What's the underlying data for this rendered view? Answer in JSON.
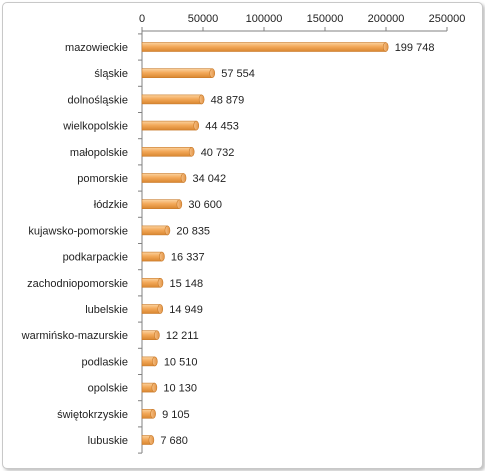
{
  "chart_data": {
    "type": "bar",
    "orientation": "horizontal",
    "title": "",
    "xlabel": "",
    "ylabel": "",
    "xlim": [
      0,
      250000
    ],
    "x_ticks": [
      0,
      50000,
      100000,
      150000,
      200000,
      250000
    ],
    "x_tick_labels": [
      "0",
      "50000",
      "100000",
      "150000",
      "200000",
      "250000"
    ],
    "x_axis_position": "top",
    "grid": false,
    "legend": "none",
    "bar_color": "#f0a550",
    "bar_edge_color": "#c87a2a",
    "categories": [
      "mazowieckie",
      "śląskie",
      "dolnośląskie",
      "wielkopolskie",
      "małopolskie",
      "pomorskie",
      "łódzkie",
      "kujawsko-pomorskie",
      "podkarpackie",
      "zachodniopomorskie",
      "lubelskie",
      "warmińsko-mazurskie",
      "podlaskie",
      "opolskie",
      "świętokrzyskie",
      "lubuskie"
    ],
    "values": [
      199748,
      57554,
      48879,
      44453,
      40732,
      34042,
      30600,
      20835,
      16337,
      15148,
      14949,
      12211,
      10510,
      10130,
      9105,
      7680
    ],
    "value_labels": [
      "199 748",
      "57 554",
      "48 879",
      "44 453",
      "40 732",
      "34 042",
      "30 600",
      "20 835",
      "16 337",
      "15 148",
      "14 949",
      "12 211",
      "10 510",
      "10 130",
      "9 105",
      "7 680"
    ]
  }
}
